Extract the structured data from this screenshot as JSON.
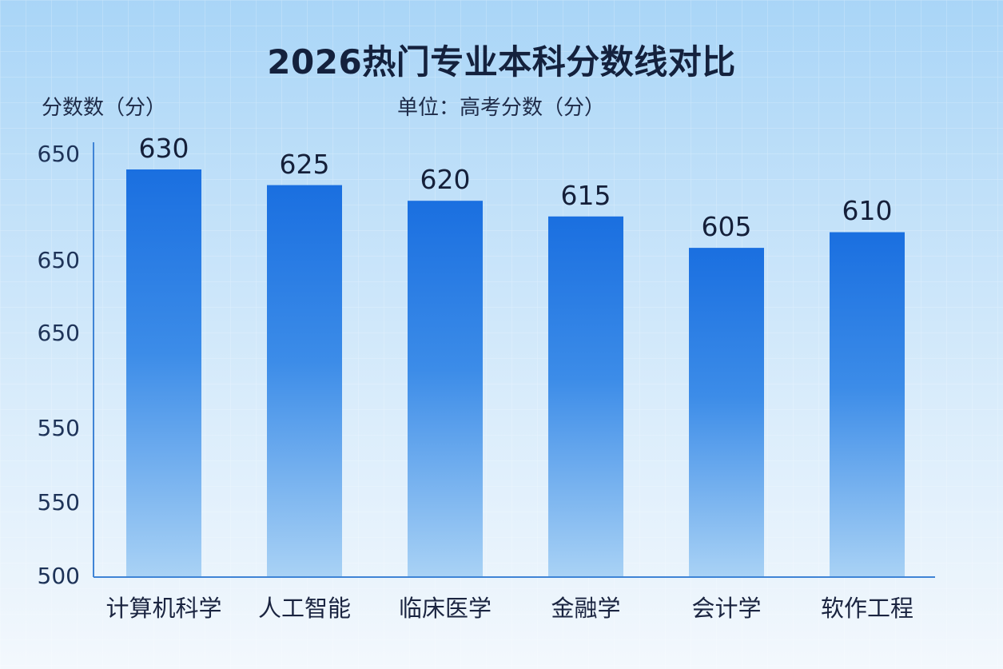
{
  "chart_data": {
    "type": "bar",
    "title": "2026热门专业本科分数线对比",
    "ylabel": "分数数（分）",
    "unit_note": "单位：高考分数（分）",
    "categories": [
      "计算机科学",
      "人工智能",
      "临床医学",
      "金融学",
      "会计学",
      "软作工程"
    ],
    "values": [
      630,
      625,
      620,
      615,
      605,
      610
    ],
    "data_labels": [
      "630",
      "625",
      "620",
      "615",
      "605",
      "610"
    ],
    "y_tick_labels": [
      "650",
      "650",
      "650",
      "550",
      "550",
      "500"
    ],
    "ylim": [
      500,
      650
    ],
    "grid": true,
    "bar_color_top": "#1a6fe0",
    "bar_color_bottom": "#a9d2f5",
    "axis_color": "#3f84d6"
  }
}
